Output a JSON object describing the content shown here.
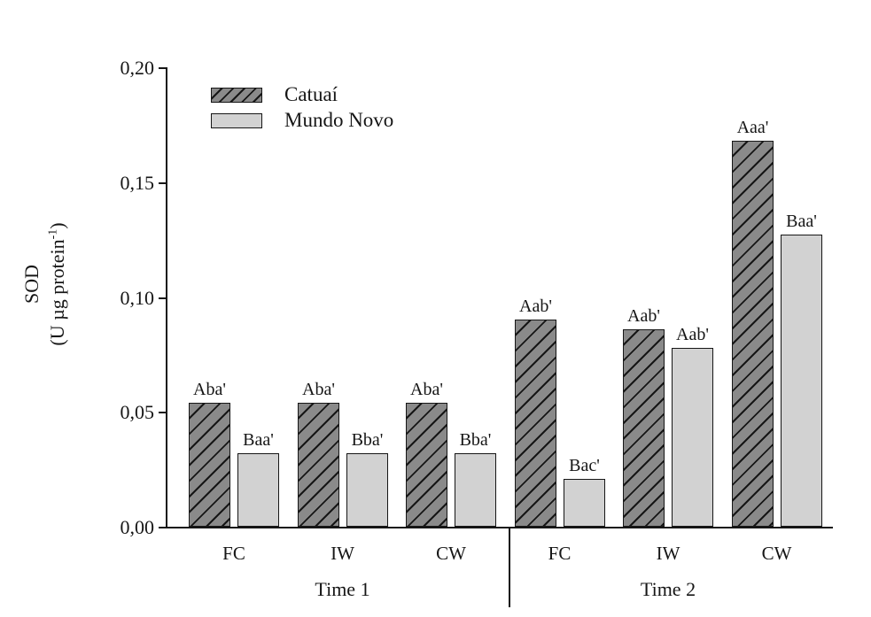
{
  "chart_data": {
    "type": "bar",
    "title": "",
    "ylabel": "SOD",
    "ylabel_unit_prefix": "(U µg protein",
    "ylabel_unit_sup": "-1",
    "ylabel_unit_suffix": ")",
    "ylim": [
      0,
      0.2
    ],
    "grid": false,
    "legend_position": "top-left-inside",
    "y_ticks": [
      {
        "label": "0,20",
        "value": 0.2
      },
      {
        "label": "0,15",
        "value": 0.15
      },
      {
        "label": "0,10",
        "value": 0.1
      },
      {
        "label": "0,05",
        "value": 0.05
      },
      {
        "label": "0,00",
        "value": 0.0
      }
    ],
    "categories": [
      "FC",
      "IW",
      "CW",
      "FC",
      "IW",
      "CW"
    ],
    "group_labels": [
      {
        "label": "Time 1"
      },
      {
        "label": "Time 2"
      }
    ],
    "series": [
      {
        "name": "Catuaí",
        "fill": "#8a8a8a",
        "hatch": "diagonal",
        "values": [
          0.054,
          0.054,
          0.054,
          0.09,
          0.086,
          0.168
        ],
        "bar_labels": [
          "Aba'",
          "Aba'",
          "Aba'",
          "Aab'",
          "Aab'",
          "Aaa'"
        ]
      },
      {
        "name": "Mundo Novo",
        "fill": "#d2d2d2",
        "hatch": "none",
        "values": [
          0.032,
          0.032,
          0.032,
          0.021,
          0.078,
          0.127
        ],
        "bar_labels": [
          "Baa'",
          "Bba'",
          "Bba'",
          "Bac'",
          "Aab'",
          "Baa'"
        ]
      }
    ]
  }
}
